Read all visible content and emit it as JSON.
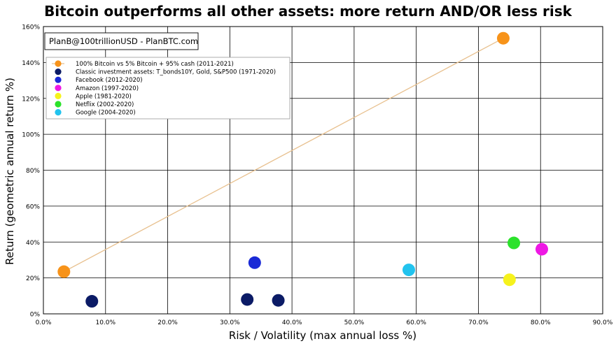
{
  "chart_data": {
    "type": "scatter",
    "title": "Bitcoin outperforms all other assets: more return AND/OR less risk",
    "xlabel": "Risk / Volatility (max annual loss %)",
    "ylabel": "Return (geometric annual return %)",
    "xlim": [
      0,
      90
    ],
    "ylim": [
      0,
      160
    ],
    "x_ticks": [
      "0.0%",
      "10.0%",
      "20.0%",
      "30.0%",
      "40.0%",
      "50.0%",
      "60.0%",
      "70.0%",
      "80.0%",
      "90.0%"
    ],
    "y_ticks": [
      "0%",
      "20%",
      "40%",
      "60%",
      "80%",
      "100%",
      "120%",
      "140%",
      "160%"
    ],
    "grid": true,
    "credit_box": "PlanB@100trillionUSD  -  PlanBTC.com",
    "legend_position": "top-left",
    "series": [
      {
        "name": "100% Bitcoin vs 5% Bitcoin + 95% cash (2011-2021)",
        "color": "#f7931a",
        "connected": true,
        "points": [
          {
            "x": 3.3,
            "y": 23.5
          },
          {
            "x": 74,
            "y": 153.5
          }
        ]
      },
      {
        "name": "Classic investment assets: T_bonds10Y, Gold, S&P500 (1971-2020)",
        "color": "#0b1b66",
        "connected": false,
        "points": [
          {
            "x": 7.8,
            "y": 7
          },
          {
            "x": 32.8,
            "y": 8
          },
          {
            "x": 37.8,
            "y": 7.5
          }
        ]
      },
      {
        "name": "Facebook (2012-2020)",
        "color": "#1a2ad6",
        "connected": false,
        "points": [
          {
            "x": 34,
            "y": 28.5
          }
        ]
      },
      {
        "name": "Amazon (1997-2020)",
        "color": "#ee18e4",
        "connected": false,
        "points": [
          {
            "x": 80.2,
            "y": 36
          }
        ]
      },
      {
        "name": "Apple (1981-2020)",
        "color": "#f6f21c",
        "connected": false,
        "points": [
          {
            "x": 75,
            "y": 19
          }
        ]
      },
      {
        "name": "Netflix (2002-2020)",
        "color": "#2be22b",
        "connected": false,
        "points": [
          {
            "x": 75.7,
            "y": 39.5
          }
        ]
      },
      {
        "name": "Google (2004-2020)",
        "color": "#22c3ee",
        "connected": false,
        "points": [
          {
            "x": 58.8,
            "y": 24.5
          }
        ]
      }
    ]
  }
}
